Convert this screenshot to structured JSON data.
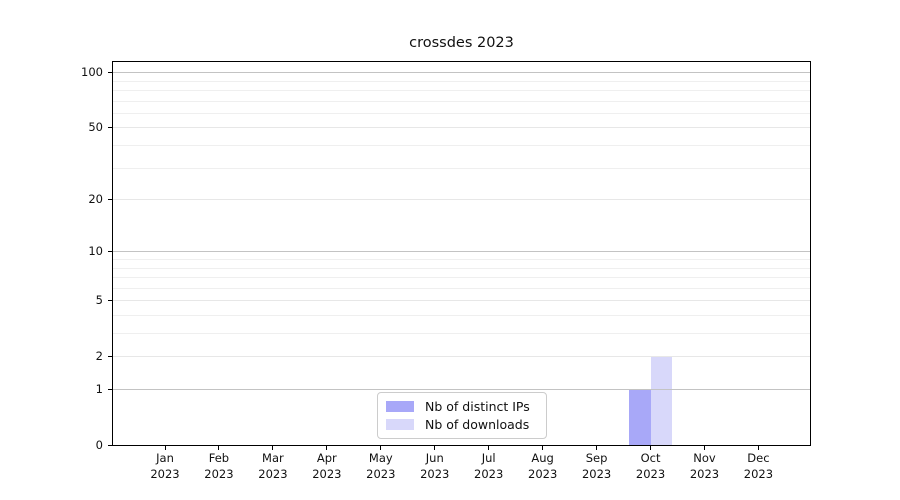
{
  "title": "crossdes 2023",
  "legend": {
    "items": [
      {
        "label": "Nb of distinct IPs",
        "color": "#a8a8f8"
      },
      {
        "label": "Nb of downloads",
        "color": "#d8d8fa"
      }
    ]
  },
  "y_axis": {
    "tick_labels": [
      "100",
      "50",
      "20",
      "10",
      "5",
      "2",
      "1",
      "0"
    ],
    "tick_values": [
      100,
      50,
      20,
      10,
      5,
      2,
      1,
      0
    ],
    "major_grid": [
      1,
      10,
      100
    ],
    "light_grid": [
      2,
      5,
      20,
      50
    ],
    "minor_grid": [
      3,
      4,
      6,
      7,
      8,
      9,
      30,
      40,
      60,
      70,
      80,
      90
    ]
  },
  "x_axis": {
    "month_labels": [
      "Jan",
      "Feb",
      "Mar",
      "Apr",
      "May",
      "Jun",
      "Jul",
      "Aug",
      "Sep",
      "Oct",
      "Nov",
      "Dec"
    ],
    "year_label": "2023"
  },
  "chart_data": {
    "type": "bar",
    "title": "crossdes 2023",
    "categories": [
      "Jan 2023",
      "Feb 2023",
      "Mar 2023",
      "Apr 2023",
      "May 2023",
      "Jun 2023",
      "Jul 2023",
      "Aug 2023",
      "Sep 2023",
      "Oct 2023",
      "Nov 2023",
      "Dec 2023"
    ],
    "series": [
      {
        "name": "Nb of distinct IPs",
        "color": "#a8a8f8",
        "values": [
          0,
          0,
          0,
          0,
          0,
          0,
          0,
          0,
          0,
          1,
          0,
          0
        ]
      },
      {
        "name": "Nb of downloads",
        "color": "#d8d8fa",
        "values": [
          0,
          0,
          0,
          0,
          0,
          0,
          0,
          0,
          0,
          2,
          0,
          0
        ]
      }
    ],
    "yscale": "log1p",
    "ylim": [
      0,
      115
    ],
    "y_ticks": [
      0,
      1,
      2,
      5,
      10,
      20,
      50,
      100
    ],
    "grid": true,
    "legend_position": "lower center"
  }
}
